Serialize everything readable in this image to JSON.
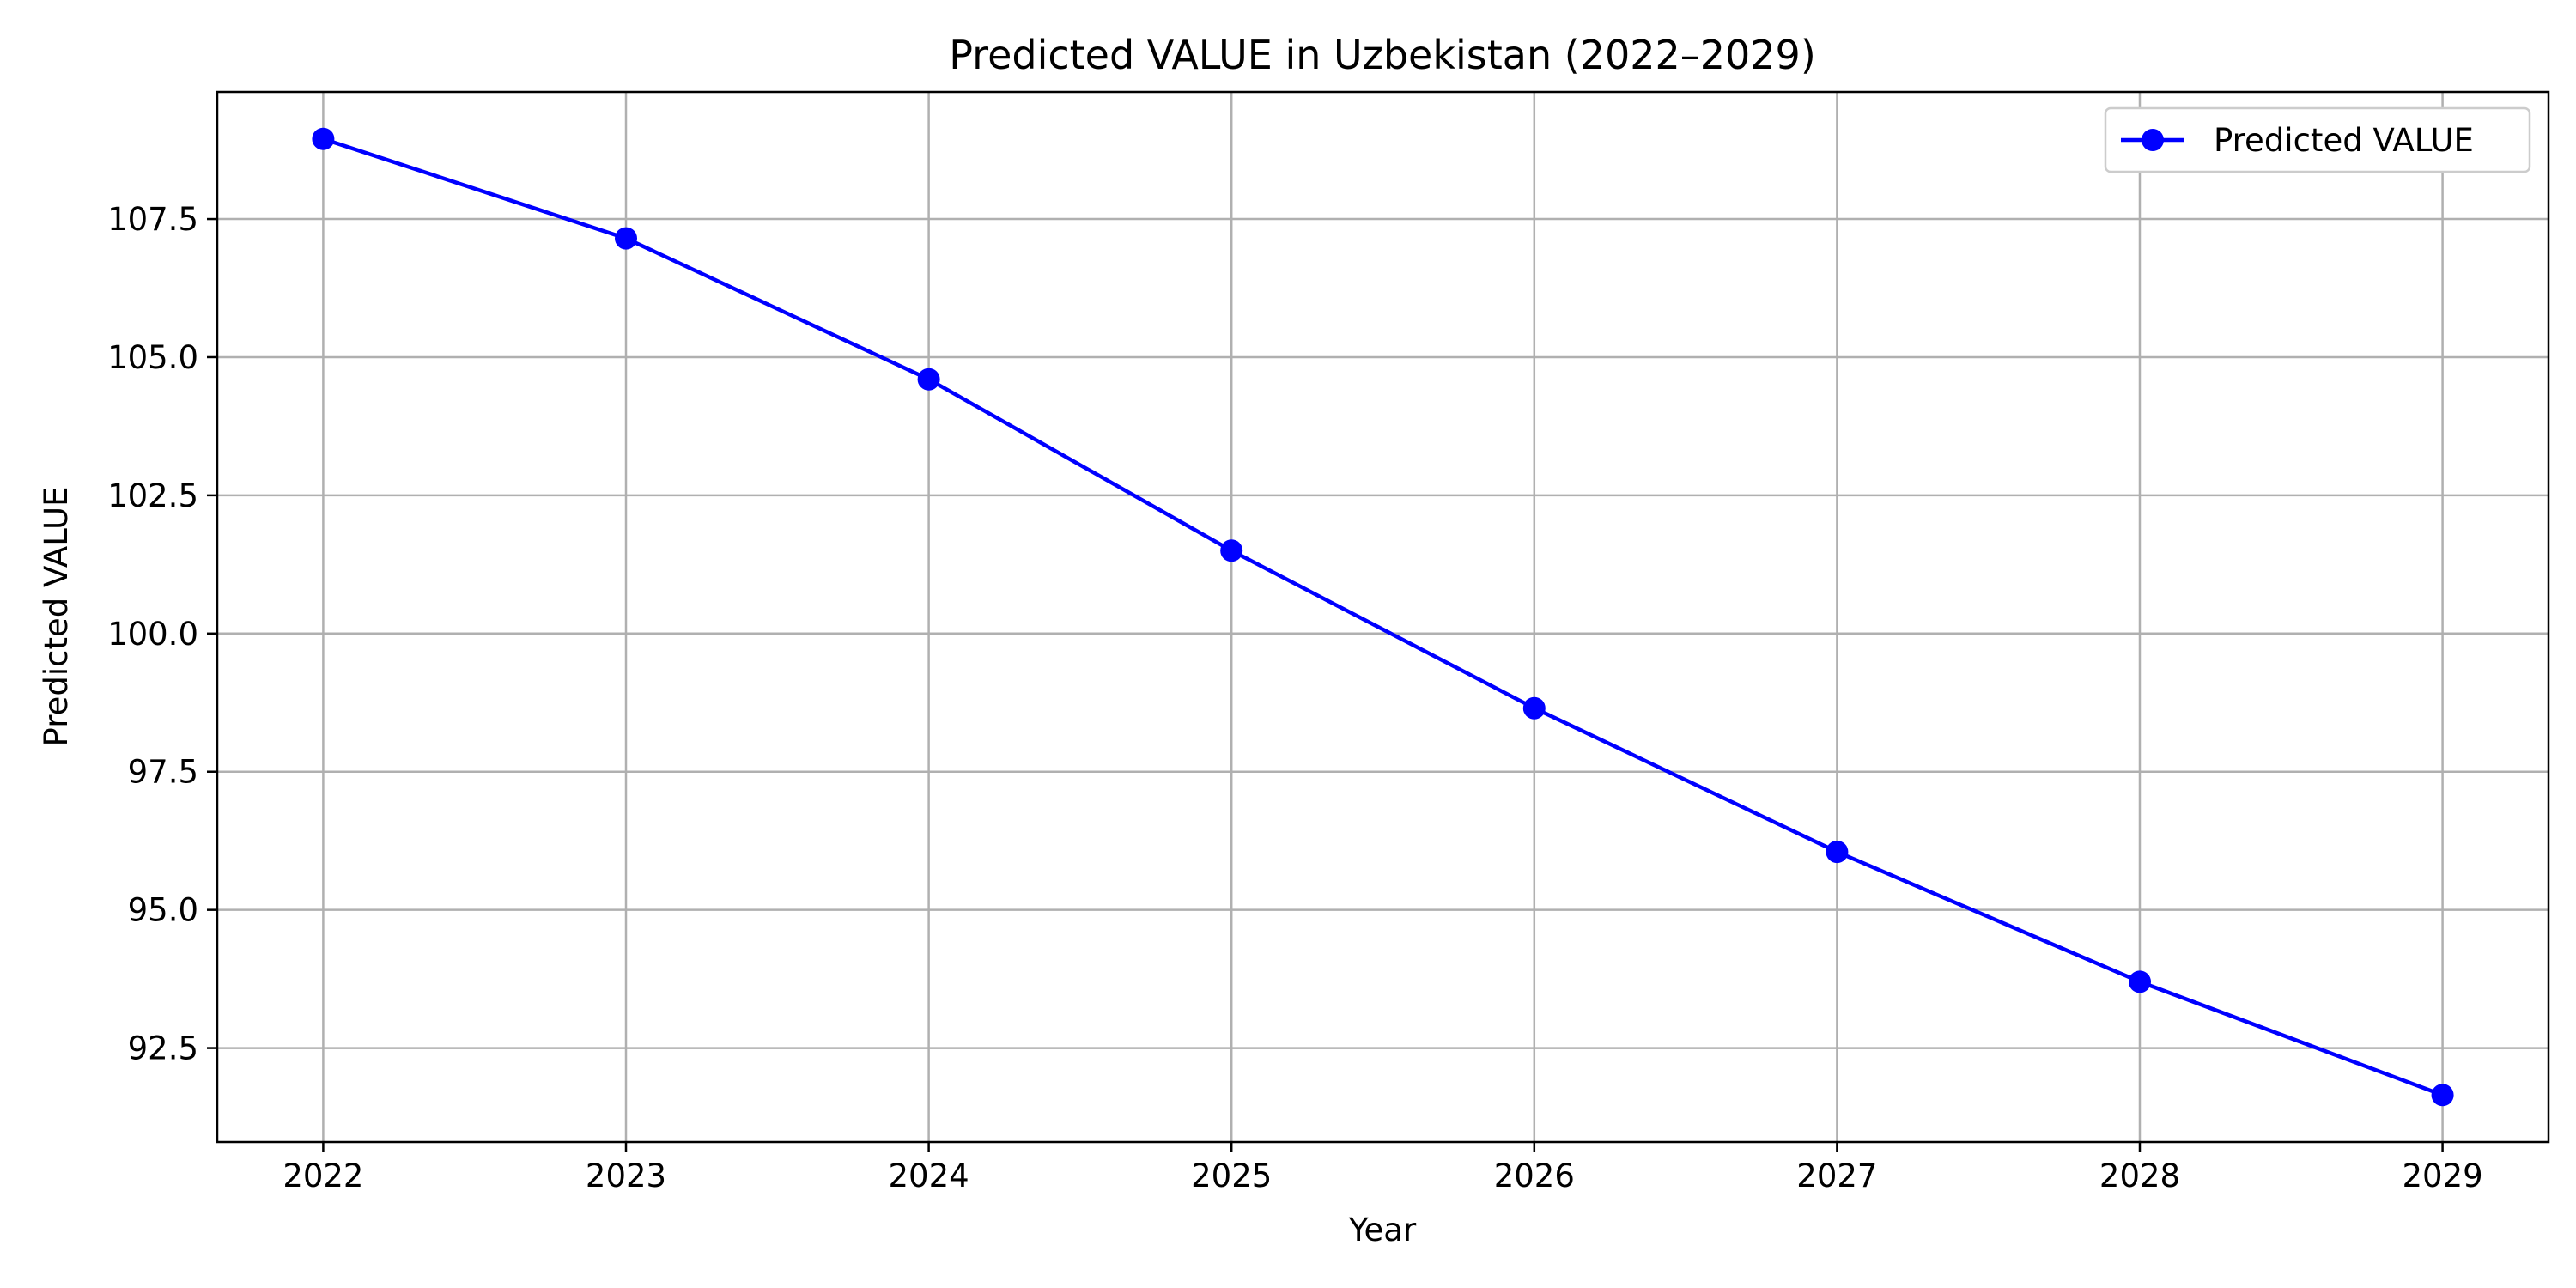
{
  "chart_data": {
    "type": "line",
    "title": "Predicted VALUE in Uzbekistan (2022–2029)",
    "xlabel": "Year",
    "ylabel": "Predicted VALUE",
    "x": [
      2022,
      2023,
      2024,
      2025,
      2026,
      2027,
      2028,
      2029
    ],
    "x_tick_labels": [
      "2022",
      "2023",
      "2024",
      "2025",
      "2026",
      "2027",
      "2028",
      "2029"
    ],
    "xlim": [
      2021.65,
      2029.35
    ],
    "ylim": [
      90.8,
      109.8
    ],
    "y_ticks": [
      92.5,
      95.0,
      97.5,
      100.0,
      102.5,
      105.0,
      107.5
    ],
    "y_tick_labels": [
      "92.5",
      "95.0",
      "97.5",
      "100.0",
      "102.5",
      "105.0",
      "107.5"
    ],
    "grid": true,
    "legend_position": "top-right",
    "series": [
      {
        "name": "Predicted VALUE",
        "color": "#0000ff",
        "marker": "circle",
        "values": [
          108.95,
          107.15,
          104.6,
          101.5,
          98.65,
          96.05,
          93.7,
          91.65
        ]
      }
    ]
  }
}
